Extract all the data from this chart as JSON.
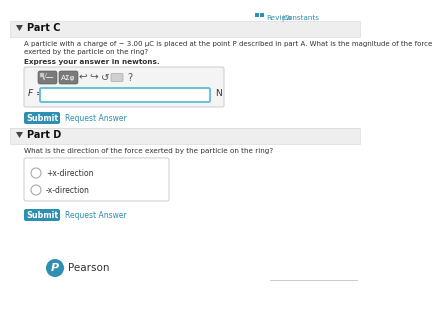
{
  "bg_color": "#ffffff",
  "header_bg": "#eeeeee",
  "part_c_label": "Part C",
  "part_d_label": "Part D",
  "review_text": "Review",
  "pipe_text": " | ",
  "constants_text": "Constants",
  "part_c_question1": "A particle with a charge of − 3.00 μC is placed at the point P described in part A. What is the magnitude of the force",
  "part_c_question2": "exerted by the particle on the ring?",
  "bold_instruction": "Express your answer in newtons.",
  "f_label": "F =",
  "n_label": "N",
  "submit_text": "Submit",
  "request_answer_text": "Request Answer",
  "part_d_question": "What is the direction of the force exerted by the particle on the ring?",
  "radio_option1": "+x-direction",
  "radio_option2": "-x-direction",
  "submit_color": "#2e8fb0",
  "input_border_color": "#5bbdd6",
  "toolbar_btn_bg": "#7a7a7a",
  "toolbar_box_bg": "#f4f4f4",
  "toolbar_box_border": "#cccccc",
  "pearson_color": "#2e8fb0",
  "radio_box_border": "#cccccc",
  "header_border": "#dddddd",
  "link_color": "#2e8fb0",
  "separator_color": "#cccccc",
  "divider_color": "#dddddd",
  "text_color": "#333333",
  "icon_squares_color": "#2e8fb0",
  "review_icon_color": "#2e8fb0"
}
